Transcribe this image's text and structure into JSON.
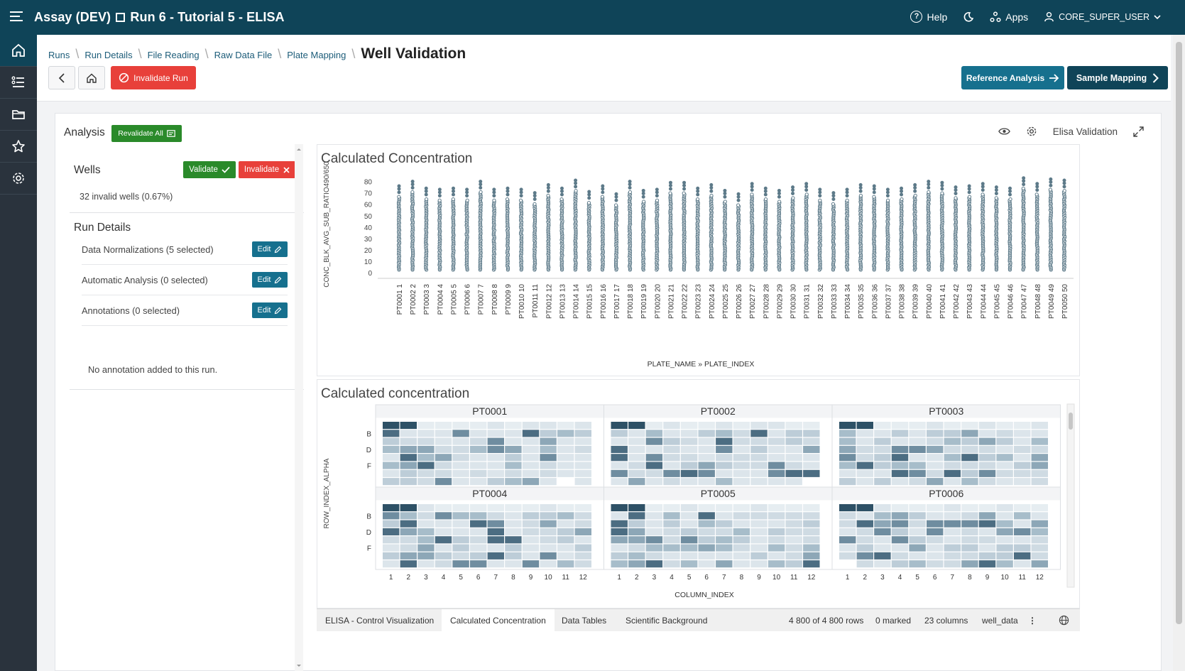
{
  "app": {
    "title_part1": "Assay (DEV)",
    "title_part2": "Run 6 - Tutorial 5 - ELISA"
  },
  "top_nav": {
    "help": "Help",
    "apps": "Apps",
    "user": "CORE_SUPER_USER"
  },
  "breadcrumb": {
    "items": [
      "Runs",
      "Run Details",
      "File Reading",
      "Raw Data File",
      "Plate Mapping"
    ],
    "current": "Well Validation"
  },
  "toolbar": {
    "invalidate_run": "Invalidate Run",
    "reference_analysis": "Reference Analysis",
    "sample_mapping": "Sample Mapping"
  },
  "panel": {
    "analysis_label": "Analysis",
    "revalidate_all": "Revalidate All",
    "view_name": "Elisa Validation"
  },
  "wells": {
    "title": "Wells",
    "validate": "Validate",
    "invalidate": "Invalidate",
    "invalid_count": "32 invalid wells (0.67%)"
  },
  "run_details": {
    "title": "Run Details",
    "rows": [
      {
        "label": "Data Normalizations (5 selected)",
        "button": "Edit"
      },
      {
        "label": "Automatic Analysis (0 selected)",
        "button": "Edit"
      },
      {
        "label": "Annotations (0 selected)",
        "button": "Edit"
      }
    ],
    "no_annotation": "No annotation added to this run."
  },
  "colors": {
    "brand": "#0f4458",
    "accent": "#16708e",
    "success": "#2a8a2a",
    "danger": "#e8403a",
    "dot": "#5d7a89"
  },
  "chart_data": [
    {
      "type": "scatter",
      "title": "Calculated Concentration",
      "xlabel": "PLATE_NAME » PLATE_INDEX",
      "ylabel": "CONC_BLK_AVG_SUB_RATIO490/650",
      "ylim": [
        0,
        85
      ],
      "yticks": [
        0,
        10,
        20,
        30,
        40,
        50,
        60,
        70,
        80
      ],
      "grid": false,
      "categories": [
        "PT0001 » 1",
        "PT0002 » 2",
        "PT0003 » 3",
        "PT0004 » 4",
        "PT0005 » 5",
        "PT0006 » 6",
        "PT0007 » 7",
        "PT0008 » 8",
        "PT0009 » 9",
        "PT0010 » 10",
        "PT0011 » 11",
        "PT0012 » 12",
        "PT0013 » 13",
        "PT0014 » 14",
        "PT0015 » 15",
        "PT0016 » 16",
        "PT0017 » 17",
        "PT0018 » 18",
        "PT0019 » 19",
        "PT0020 » 20",
        "PT0021 » 21",
        "PT0022 » 22",
        "PT0023 » 23",
        "PT0024 » 24",
        "PT0025 » 25",
        "PT0026 » 26",
        "PT0027 » 27",
        "PT0028 » 28",
        "PT0029 » 29",
        "PT0030 » 30",
        "PT0031 » 31",
        "PT0032 » 32",
        "PT0033 » 33",
        "PT0034 » 34",
        "PT0035 » 35",
        "PT0036 » 36",
        "PT0037 » 37",
        "PT0038 » 38",
        "PT0039 » 39",
        "PT0040 » 40",
        "PT0041 » 41",
        "PT0042 » 42",
        "PT0043 » 43",
        "PT0044 » 44",
        "PT0045 » 45",
        "PT0046 » 46",
        "PT0047 » 47",
        "PT0048 » 48",
        "PT0049 » 49",
        "PT0050 » 50"
      ],
      "max_values": [
        76,
        80,
        74,
        73,
        74,
        73,
        80,
        73,
        74,
        73,
        70,
        77,
        74,
        81,
        71,
        76,
        69,
        80,
        72,
        73,
        79,
        79,
        74,
        77,
        72,
        69,
        78,
        74,
        72,
        75,
        78,
        73,
        70,
        73,
        77,
        76,
        73,
        74,
        77,
        80,
        79,
        75,
        76,
        78,
        75,
        74,
        83,
        78,
        82,
        81
      ]
    },
    {
      "type": "heatmap",
      "title": "Calculated concentration",
      "xlabel": "COLUMN_INDEX",
      "ylabel": "ROW_INDEX_ALPHA",
      "plates": [
        "PT0001",
        "PT0002",
        "PT0003",
        "PT0004",
        "PT0005",
        "PT0006"
      ],
      "columns": [
        "1",
        "2",
        "3",
        "4",
        "5",
        "6",
        "7",
        "8",
        "9",
        "10",
        "11",
        "12"
      ],
      "row_labels": [
        "B",
        "D",
        "F"
      ]
    }
  ],
  "bottom_tabs": [
    "ELISA - Control Visualization",
    "Calculated Concentration",
    "Data Tables",
    "Scientific Background"
  ],
  "status_bar": {
    "rows": "4 800 of 4 800 rows",
    "marked": "0 marked",
    "columns": "23 columns",
    "table": "well_data"
  }
}
